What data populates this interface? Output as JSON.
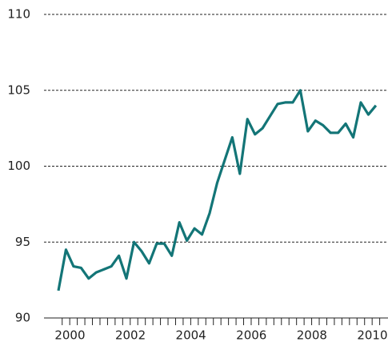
{
  "chart_data": {
    "type": "line",
    "categories": [
      null,
      "2000",
      null,
      null,
      null,
      null,
      null,
      null,
      null,
      "2002",
      null,
      null,
      null,
      null,
      null,
      null,
      null,
      "2004",
      null,
      null,
      null,
      null,
      null,
      null,
      null,
      "2006",
      null,
      null,
      null,
      null,
      null,
      null,
      null,
      "2008",
      null,
      null,
      null,
      null,
      null,
      null,
      null,
      "2010",
      null
    ],
    "series": [
      {
        "color": "#137577",
        "values": [
          91.8,
          94.5,
          93.4,
          93.3,
          92.6,
          93.0,
          93.2,
          93.4,
          94.1,
          92.6,
          95.0,
          94.4,
          93.6,
          94.9,
          94.9,
          94.1,
          96.3,
          95.1,
          95.9,
          95.5,
          96.9,
          98.9,
          100.4,
          101.9,
          99.5,
          103.1,
          102.1,
          102.5,
          103.3,
          104.1,
          104.2,
          104.2,
          105.0,
          102.3,
          103.0,
          102.7,
          102.2,
          102.2,
          102.8,
          101.9,
          104.2,
          103.4,
          104.0
        ]
      }
    ],
    "ylim": [
      90,
      110
    ],
    "yticks": [
      90,
      95,
      100,
      105,
      110
    ],
    "grid": true
  }
}
